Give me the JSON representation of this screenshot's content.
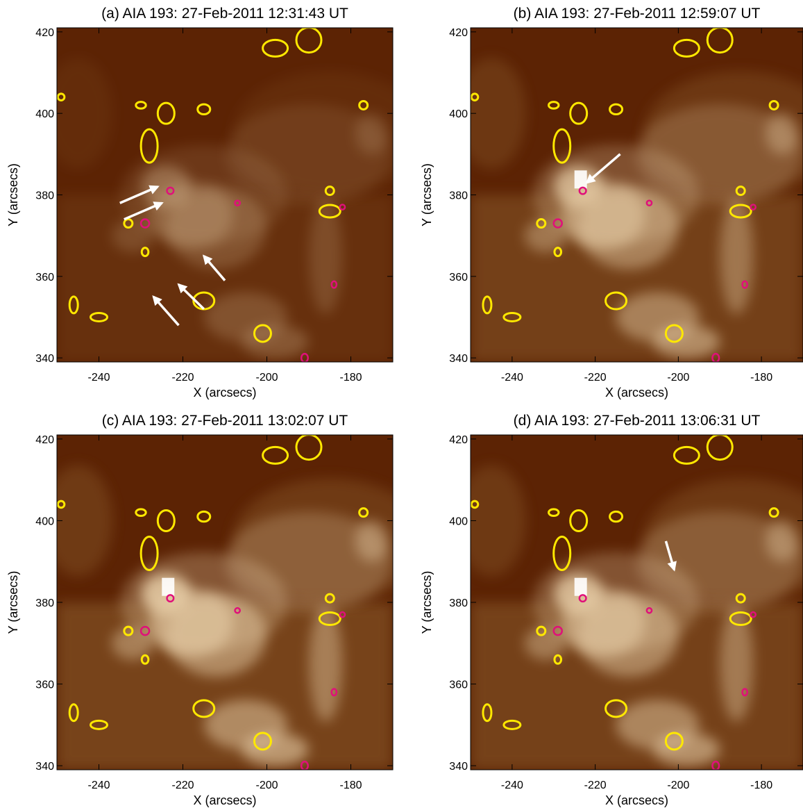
{
  "chart_data": [
    {
      "type": "image",
      "title": "(a) AIA 193: 27-Feb-2011 12:31:43 UT",
      "xlabel": "X (arcsecs)",
      "ylabel": "Y (arcsecs)",
      "xlim": [
        -250,
        -170
      ],
      "ylim": [
        339,
        421
      ],
      "xticks": [
        -240,
        -220,
        -200,
        -180
      ],
      "yticks": [
        340,
        360,
        380,
        400,
        420
      ]
    },
    {
      "type": "image",
      "title": "(b) AIA 193: 27-Feb-2011 12:59:07 UT",
      "xlabel": "X (arcsecs)",
      "ylabel": "Y (arcsecs)",
      "xlim": [
        -250,
        -170
      ],
      "ylim": [
        339,
        421
      ],
      "xticks": [
        -240,
        -220,
        -200,
        -180
      ],
      "yticks": [
        340,
        360,
        380,
        400,
        420
      ]
    },
    {
      "type": "image",
      "title": "(c) AIA 193: 27-Feb-2011 13:02:07 UT",
      "xlabel": "X (arcsecs)",
      "ylabel": "Y (arcsecs)",
      "xlim": [
        -250,
        -170
      ],
      "ylim": [
        339,
        421
      ],
      "xticks": [
        -240,
        -220,
        -200,
        -180
      ],
      "yticks": [
        340,
        360,
        380,
        400,
        420
      ]
    },
    {
      "type": "image",
      "title": "(d) AIA 193: 27-Feb-2011 13:06:31 UT",
      "xlabel": "X (arcsecs)",
      "ylabel": "Y (arcsecs)",
      "xlim": [
        -250,
        -170
      ],
      "ylim": [
        339,
        421
      ],
      "xticks": [
        -240,
        -220,
        -200,
        -180
      ],
      "yticks": [
        340,
        360,
        380,
        400,
        420
      ]
    }
  ]
}
